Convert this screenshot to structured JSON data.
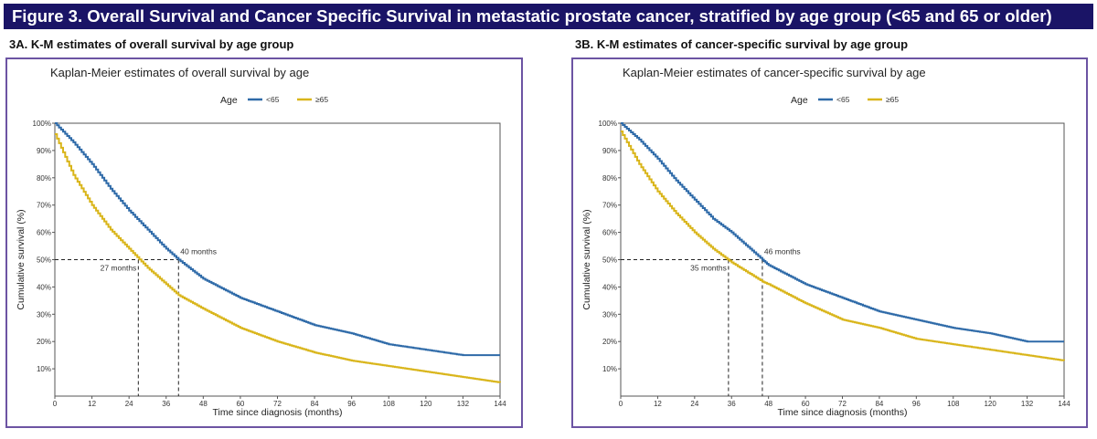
{
  "banner": {
    "title": "Figure 3. Overall Survival and Cancer Specific Survival in metastatic prostate cancer, stratified by age group (<65 and 65 or older)"
  },
  "panels": [
    {
      "label": "3A. K-M estimates of overall survival by age group"
    },
    {
      "label": "3B. K-M estimates of cancer-specific survival by age group"
    }
  ],
  "colors": {
    "banner": "#1a1466",
    "panel_border": "#6c54a3",
    "under65": "#2e6aa8",
    "over65": "#d9b51a"
  },
  "chart_data": [
    {
      "type": "line",
      "title": "Kaplan-Meier estimates of overall survival by age",
      "xlabel": "Time since diagnosis (months)",
      "ylabel": "Cumulative survival (%)",
      "legend_title": "Age",
      "legend_position": "top-center",
      "xlim": [
        0,
        144
      ],
      "ylim": [
        0,
        100
      ],
      "x_ticks": [
        0,
        12,
        24,
        36,
        48,
        60,
        72,
        84,
        96,
        108,
        120,
        132,
        144
      ],
      "y_ticks": [
        10,
        20,
        30,
        40,
        50,
        60,
        70,
        80,
        90,
        100
      ],
      "y_tick_labels": [
        "10%",
        "20%",
        "30%",
        "40%",
        "50%",
        "60%",
        "70%",
        "80%",
        "90%",
        "100%"
      ],
      "grid": false,
      "x": [
        0,
        6,
        12,
        18,
        24,
        30,
        36,
        40,
        48,
        60,
        72,
        84,
        96,
        108,
        120,
        132,
        144
      ],
      "series": [
        {
          "name": "<65",
          "values": [
            100,
            93,
            85,
            76,
            68,
            61,
            54,
            50,
            43,
            36,
            31,
            26,
            23,
            19,
            17,
            15,
            15
          ]
        },
        {
          "name": "≥65",
          "values": [
            96,
            81,
            70,
            61,
            54,
            47,
            41,
            37,
            32,
            25,
            20,
            16,
            13,
            11,
            9,
            7,
            5
          ]
        }
      ],
      "annotations": [
        {
          "text": "40 months",
          "x": 40,
          "y": 50
        },
        {
          "text": "27 months",
          "x": 27,
          "y": 50
        }
      ]
    },
    {
      "type": "line",
      "title": "Kaplan-Meier estimates of cancer-specific survival by age",
      "xlabel": "Time since diagnosis (months)",
      "ylabel": "Cumulative survival (%)",
      "legend_title": "Age",
      "legend_position": "top-center",
      "xlim": [
        0,
        144
      ],
      "ylim": [
        0,
        100
      ],
      "x_ticks": [
        0,
        12,
        24,
        36,
        48,
        60,
        72,
        84,
        96,
        108,
        120,
        132,
        144
      ],
      "y_ticks": [
        10,
        20,
        30,
        40,
        50,
        60,
        70,
        80,
        90,
        100
      ],
      "y_tick_labels": [
        "10%",
        "20%",
        "30%",
        "40%",
        "50%",
        "60%",
        "70%",
        "80%",
        "90%",
        "100%"
      ],
      "grid": false,
      "x": [
        0,
        6,
        12,
        18,
        24,
        30,
        36,
        46,
        48,
        60,
        72,
        84,
        96,
        108,
        120,
        132,
        144
      ],
      "series": [
        {
          "name": "<65",
          "values": [
            100,
            94,
            87,
            79,
            72,
            65,
            60,
            50,
            48,
            41,
            36,
            31,
            28,
            25,
            23,
            20,
            20
          ]
        },
        {
          "name": "≥65",
          "values": [
            97,
            85,
            75,
            67,
            60,
            54,
            49,
            42,
            41,
            34,
            28,
            25,
            21,
            19,
            17,
            15,
            13
          ]
        }
      ],
      "annotations": [
        {
          "text": "46 months",
          "x": 46,
          "y": 50
        },
        {
          "text": "35 months",
          "x": 35,
          "y": 50
        }
      ]
    }
  ]
}
